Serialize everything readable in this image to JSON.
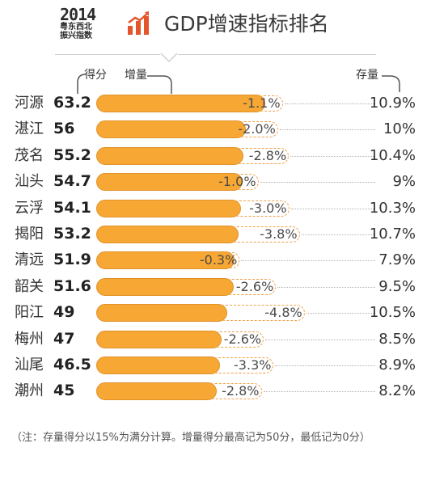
{
  "header": {
    "logo_year": "2014",
    "logo_line1": "粤东西北",
    "logo_line2": "振兴指数",
    "title": "GDP增速指标排名",
    "accent_color": "#e5552c"
  },
  "columns": {
    "score": "得分",
    "increment": "增量",
    "stock": "存量"
  },
  "chart_data": {
    "type": "bar",
    "title": "GDP增速指标排名",
    "categories": [
      "河源",
      "湛江",
      "茂名",
      "汕头",
      "云浮",
      "揭阳",
      "清远",
      "韶关",
      "阳江",
      "梅州",
      "汕尾",
      "潮州"
    ],
    "score_labels": [
      "63.2",
      "56",
      "55.2",
      "54.7",
      "54.1",
      "53.2",
      "51.9",
      "51.6",
      "49",
      "47",
      "46.5",
      "45"
    ],
    "series": [
      {
        "name": "得分",
        "values": [
          63.2,
          56,
          55.2,
          54.7,
          54.1,
          53.2,
          51.9,
          51.6,
          49,
          47,
          46.5,
          45
        ]
      },
      {
        "name": "增量",
        "values": [
          -1.1,
          -2.0,
          -2.8,
          -1.0,
          -3.0,
          -3.8,
          -0.3,
          -2.6,
          -4.8,
          -2.6,
          -3.3,
          -2.8
        ],
        "labels": [
          "-1.1%",
          "-2.0%",
          "-2.8%",
          "-1.0%",
          "-3.0%",
          "-3.8%",
          "-0.3%",
          "-2.6%",
          "-4.8%",
          "-2.6%",
          "-3.3%",
          "-2.8%"
        ]
      },
      {
        "name": "存量",
        "values": [
          10.9,
          10,
          10.4,
          9,
          10.3,
          10.7,
          7.9,
          9.5,
          10.5,
          8.5,
          8.9,
          8.2
        ],
        "labels": [
          "10.9%",
          "10%",
          "10.4%",
          "9%",
          "10.3%",
          "10.7%",
          "7.9%",
          "9.5%",
          "10.5%",
          "8.5%",
          "8.9%",
          "8.2%"
        ]
      }
    ],
    "bar_color": "#f6a734",
    "grid": false
  },
  "footnote": "（注：存量得分以15%为满分计算。增量得分最高记为50分，最低记为0分）"
}
